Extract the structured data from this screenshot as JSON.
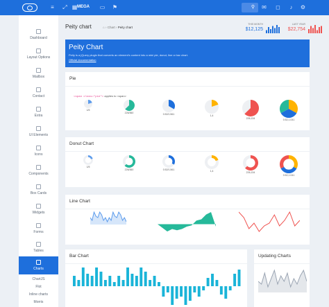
{
  "topbar": {
    "mega_label": "MEGA",
    "icons": [
      "menu-icon",
      "expand-icon",
      "grid-icon",
      "window-icon",
      "flag-icon",
      "mail-icon",
      "chat-icon",
      "bell-icon",
      "gear-icon"
    ]
  },
  "sidebar": {
    "items": [
      {
        "label": "Dashboard"
      },
      {
        "label": "Layout Options"
      },
      {
        "label": "Mailbox"
      },
      {
        "label": "Contact"
      },
      {
        "label": "Extra"
      },
      {
        "label": "UI Elements"
      },
      {
        "label": "Icons"
      },
      {
        "label": "Components"
      },
      {
        "label": "Box Cards"
      },
      {
        "label": "Widgets"
      },
      {
        "label": "Forms"
      },
      {
        "label": "Tables"
      },
      {
        "label": "Charts"
      }
    ],
    "sub_items": [
      "ChartJS",
      "Flot",
      "Inline charts",
      "Morris"
    ]
  },
  "page": {
    "title": "Peity chart",
    "breadcrumb": [
      "Chart",
      "Peity chart"
    ]
  },
  "stats": [
    {
      "label": "THIS MONTH",
      "value": "$12,125",
      "color": "#1e6fdc",
      "bars": [
        3,
        6,
        4,
        7,
        5,
        8,
        6
      ]
    },
    {
      "label": "LAST YEAR",
      "value": "$22,754",
      "color": "#ef5350",
      "bars": [
        4,
        7,
        5,
        8,
        3,
        6,
        7
      ]
    }
  ],
  "banner": {
    "title": "Peity Chart",
    "description": "Peity is a jQuery plugin that converts an element's content into a mini pie, donut, line or bar chart.",
    "link": "Official documentation"
  },
  "pie": {
    "title": "Pie",
    "code": "<span class=\"pie\">",
    "code_suffix": "applies to <span>",
    "items": [
      {
        "label": "1/5",
        "type": "single",
        "fraction": 0.2,
        "color": "#5d9cec"
      },
      {
        "label": "226/360",
        "type": "single",
        "fraction": 0.628,
        "color": "#26b99a"
      },
      {
        "label": "0.52/1.561",
        "type": "single",
        "fraction": 0.333,
        "color": "#1e6fdc"
      },
      {
        "label": "1,4",
        "type": "single",
        "fraction": 0.2,
        "color": "#ffb300"
      },
      {
        "label": "226,134",
        "type": "single",
        "fraction": 0.628,
        "color": "#ef5350"
      },
      {
        "label": "0.52,1.041",
        "type": "multi",
        "fractions": [
          0.33,
          0.34,
          0.33
        ],
        "colors": [
          "#ffb300",
          "#1e6fdc",
          "#26b99a"
        ]
      }
    ]
  },
  "donut": {
    "title": "Donut Chart",
    "items": [
      {
        "label": "1/5",
        "type": "single",
        "fraction": 0.2,
        "color": "#5d9cec"
      },
      {
        "label": "226/360",
        "type": "single",
        "fraction": 0.628,
        "color": "#26b99a"
      },
      {
        "label": "0.52/1.561",
        "type": "single",
        "fraction": 0.333,
        "color": "#1e6fdc"
      },
      {
        "label": "1,4",
        "type": "single",
        "fraction": 0.2,
        "color": "#ffb300"
      },
      {
        "label": "226,134",
        "type": "single",
        "fraction": 0.628,
        "color": "#ef5350"
      },
      {
        "label": "0.52,1.041",
        "type": "multi",
        "fractions": [
          0.33,
          0.34,
          0.33
        ],
        "colors": [
          "#ffb300",
          "#1e6fdc",
          "#ef5350"
        ]
      }
    ]
  },
  "line": {
    "title": "Line Chart",
    "series": [
      {
        "type": "line",
        "color": "#5d9cec",
        "fill": true,
        "values": [
          5,
          3,
          9,
          6,
          5,
          9,
          7,
          3,
          5,
          2,
          5,
          3,
          9,
          6,
          5,
          9,
          7,
          3,
          5,
          2
        ]
      },
      {
        "type": "area",
        "color": "#26b99a",
        "values": [
          0,
          -3,
          -6,
          -4,
          -5,
          -4,
          -2,
          -1,
          3,
          4,
          8,
          10,
          -2
        ]
      },
      {
        "type": "line",
        "color": "#ef5350",
        "fill": false,
        "values": [
          9,
          7,
          3,
          5,
          2,
          4,
          5,
          8,
          4,
          6,
          9,
          4,
          6
        ]
      }
    ]
  },
  "bar": {
    "title": "Bar Chart",
    "values": [
      5,
      3,
      9,
      6,
      5,
      9,
      7,
      3,
      5,
      2,
      5,
      3,
      9,
      6,
      5,
      9,
      7,
      3,
      5,
      2,
      -5,
      -3,
      -9,
      -6,
      -5,
      -9,
      -7,
      -3,
      -5,
      -2,
      4,
      6,
      3,
      -4,
      -6,
      -2,
      6,
      8
    ],
    "color": "#1ab4d8"
  },
  "updating": {
    "title": "Updating Charts",
    "values": [
      4,
      3,
      7,
      2,
      5,
      8,
      3,
      6,
      4,
      7,
      2,
      5,
      3,
      6,
      8,
      4
    ],
    "color": "#9aa4b2"
  }
}
